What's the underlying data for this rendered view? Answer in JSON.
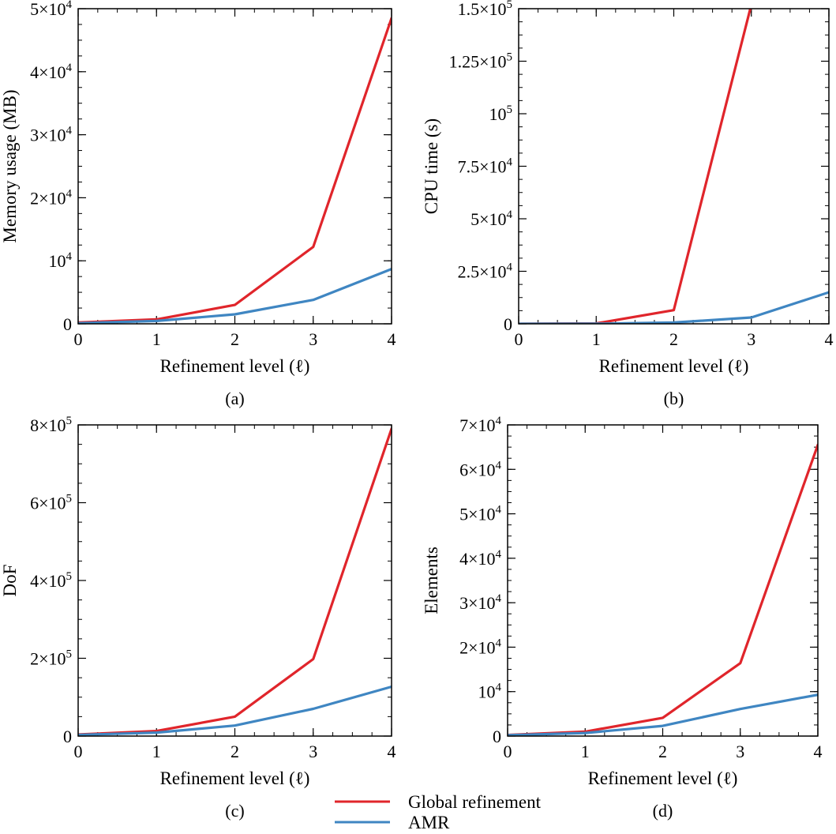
{
  "chart_data": [
    {
      "panel": "(a)",
      "type": "line",
      "xlabel": "Refinement level (ℓ)",
      "ylabel": "Memory usage (MB)",
      "x": [
        0,
        1,
        2,
        3,
        4
      ],
      "xlim": [
        0,
        4
      ],
      "ylim": [
        0,
        50000
      ],
      "xticks": [
        {
          "value": 0,
          "label": "0"
        },
        {
          "value": 1,
          "label": "1"
        },
        {
          "value": 2,
          "label": "2"
        },
        {
          "value": 3,
          "label": "3"
        },
        {
          "value": 4,
          "label": "4"
        }
      ],
      "yticks": [
        {
          "value": 0,
          "label": "0"
        },
        {
          "value": 10000,
          "label": "10",
          "sup": "4"
        },
        {
          "value": 20000,
          "label": "2×10",
          "sup": "4"
        },
        {
          "value": 30000,
          "label": "3×10",
          "sup": "4"
        },
        {
          "value": 40000,
          "label": "4×10",
          "sup": "4"
        },
        {
          "value": 50000,
          "label": "5×10",
          "sup": "4"
        }
      ],
      "yminor_step": 2500,
      "series": [
        {
          "name": "Global refinement",
          "values": [
            200,
            700,
            3000,
            12200,
            48500
          ]
        },
        {
          "name": "AMR",
          "values": [
            100,
            450,
            1500,
            3800,
            8700
          ]
        }
      ]
    },
    {
      "panel": "(b)",
      "type": "line",
      "xlabel": "Refinement level (ℓ)",
      "ylabel": "CPU time (s)",
      "x": [
        0,
        1,
        2,
        3,
        4
      ],
      "xlim": [
        0,
        4
      ],
      "ylim": [
        0,
        150000
      ],
      "xticks": [
        {
          "value": 0,
          "label": "0"
        },
        {
          "value": 1,
          "label": "1"
        },
        {
          "value": 2,
          "label": "2"
        },
        {
          "value": 3,
          "label": "3"
        },
        {
          "value": 4,
          "label": "4"
        }
      ],
      "yticks": [
        {
          "value": 0,
          "label": "0"
        },
        {
          "value": 25000,
          "label": "2.5×10",
          "sup": "4"
        },
        {
          "value": 50000,
          "label": "5×10",
          "sup": "4"
        },
        {
          "value": 75000,
          "label": "7.5×10",
          "sup": "4"
        },
        {
          "value": 100000,
          "label": "10",
          "sup": "5"
        },
        {
          "value": 125000,
          "label": "1.25×10",
          "sup": "5"
        },
        {
          "value": 150000,
          "label": "1.5×10",
          "sup": "5"
        }
      ],
      "yminor_step": 6250,
      "series": [
        {
          "name": "Global refinement",
          "values": [
            0,
            200,
            6500,
            152000,
            null
          ]
        },
        {
          "name": "AMR",
          "values": [
            0,
            50,
            600,
            3000,
            15000
          ]
        }
      ]
    },
    {
      "panel": "(c)",
      "type": "line",
      "xlabel": "Refinement level (ℓ)",
      "ylabel": "DoF",
      "x": [
        0,
        1,
        2,
        3,
        4
      ],
      "xlim": [
        0,
        4
      ],
      "ylim": [
        0,
        800000
      ],
      "xticks": [
        {
          "value": 0,
          "label": "0"
        },
        {
          "value": 1,
          "label": "1"
        },
        {
          "value": 2,
          "label": "2"
        },
        {
          "value": 3,
          "label": "3"
        },
        {
          "value": 4,
          "label": "4"
        }
      ],
      "yticks": [
        {
          "value": 0,
          "label": "0"
        },
        {
          "value": 200000,
          "label": "2×10",
          "sup": "5"
        },
        {
          "value": 400000,
          "label": "4×10",
          "sup": "5"
        },
        {
          "value": 600000,
          "label": "6×10",
          "sup": "5"
        },
        {
          "value": 800000,
          "label": "8×10",
          "sup": "5"
        }
      ],
      "yminor_step": 50000,
      "series": [
        {
          "name": "Global refinement",
          "values": [
            4000,
            13000,
            50000,
            198000,
            790000
          ]
        },
        {
          "name": "AMR",
          "values": [
            3000,
            9000,
            27000,
            70000,
            127000
          ]
        }
      ]
    },
    {
      "panel": "(d)",
      "type": "line",
      "xlabel": "Refinement level (ℓ)",
      "ylabel": "Elements",
      "x": [
        0,
        1,
        2,
        3,
        4
      ],
      "xlim": [
        0,
        4
      ],
      "ylim": [
        0,
        70000
      ],
      "xticks": [
        {
          "value": 0,
          "label": "0"
        },
        {
          "value": 1,
          "label": "1"
        },
        {
          "value": 2,
          "label": "2"
        },
        {
          "value": 3,
          "label": "3"
        },
        {
          "value": 4,
          "label": "4"
        }
      ],
      "yticks": [
        {
          "value": 0,
          "label": "0"
        },
        {
          "value": 10000,
          "label": "10",
          "sup": "4"
        },
        {
          "value": 20000,
          "label": "2×10",
          "sup": "4"
        },
        {
          "value": 30000,
          "label": "3×10",
          "sup": "4"
        },
        {
          "value": 40000,
          "label": "4×10",
          "sup": "4"
        },
        {
          "value": 50000,
          "label": "5×10",
          "sup": "4"
        },
        {
          "value": 60000,
          "label": "6×10",
          "sup": "4"
        },
        {
          "value": 70000,
          "label": "7×10",
          "sup": "4"
        }
      ],
      "yminor_step": 2500,
      "series": [
        {
          "name": "Global refinement",
          "values": [
            250,
            1000,
            4100,
            16400,
            65500
          ]
        },
        {
          "name": "AMR",
          "values": [
            200,
            700,
            2300,
            6100,
            9300
          ]
        }
      ]
    }
  ],
  "legend": [
    {
      "name": "Global refinement",
      "color": "#e0252b"
    },
    {
      "name": "AMR",
      "color": "#3f86c2"
    }
  ],
  "series_colors": {
    "Global refinement": "#e0252b",
    "AMR": "#3f86c2"
  }
}
